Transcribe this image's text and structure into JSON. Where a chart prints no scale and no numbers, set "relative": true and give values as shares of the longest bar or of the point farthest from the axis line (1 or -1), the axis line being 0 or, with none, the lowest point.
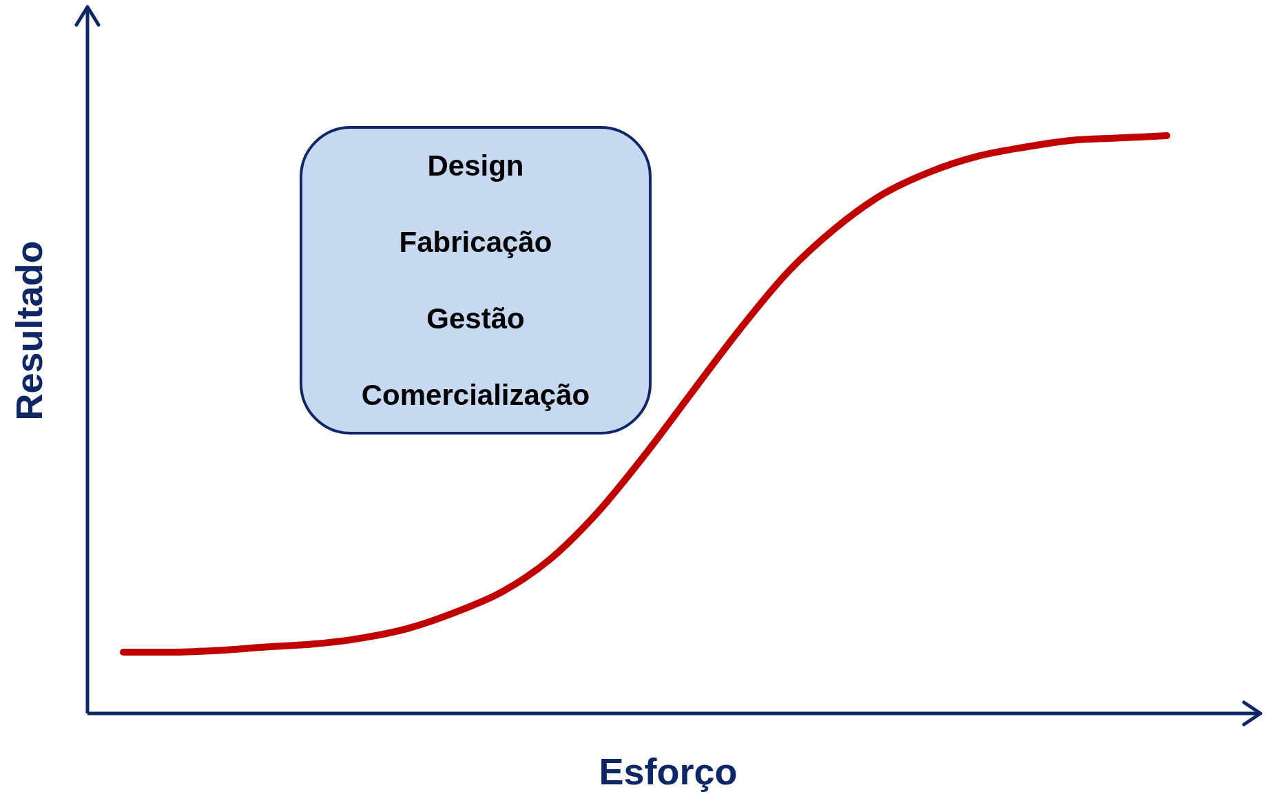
{
  "chart_data": {
    "type": "line",
    "xlabel": "Esforço",
    "ylabel": "Resultado",
    "relative": true,
    "annotations": [
      "Design",
      "Fabricação",
      "Gestão",
      "Comercialização"
    ],
    "categories": [
      null,
      null,
      null,
      null,
      null,
      null,
      null,
      null,
      null,
      null,
      null,
      null,
      null,
      null,
      null,
      null,
      null,
      null,
      null,
      null,
      null,
      null,
      null
    ],
    "series": [
      {
        "color": "#c00000",
        "values": [
          0.106,
          0.106,
          0.109,
          0.115,
          0.12,
          0.13,
          0.147,
          0.175,
          0.211,
          0.267,
          0.348,
          0.448,
          0.557,
          0.665,
          0.763,
          0.839,
          0.898,
          0.937,
          0.964,
          0.98,
          0.992,
          0.996,
          1
        ]
      }
    ]
  }
}
